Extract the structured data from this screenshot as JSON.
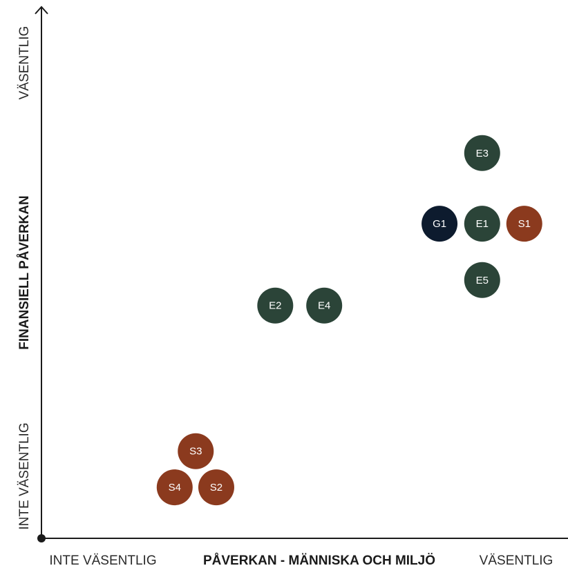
{
  "chart_data": {
    "type": "scatter",
    "title": "",
    "xlabel": "PÅVERKAN - MÄNNISKA OCH MILJÖ",
    "ylabel": "FINANSIELL PÅVERKAN",
    "x_low_label": "INTE VÄSENTLIG",
    "x_high_label": "VÄSENTLIG",
    "y_low_label": "INTE VÄSENTLIG",
    "y_high_label": "VÄSENTLIG",
    "xlim": [
      0,
      100
    ],
    "ylim": [
      0,
      100
    ],
    "grid": false,
    "legend": "none",
    "colors": {
      "E": "#2b4438",
      "S": "#8b3a1e",
      "G": "#0d1b2e"
    },
    "points": [
      {
        "label": "E3",
        "group": "E",
        "x": 83.7,
        "y": 72.5
      },
      {
        "label": "G1",
        "group": "G",
        "x": 75.6,
        "y": 59.2
      },
      {
        "label": "E1",
        "group": "E",
        "x": 83.7,
        "y": 59.2
      },
      {
        "label": "S1",
        "group": "S",
        "x": 91.7,
        "y": 59.2
      },
      {
        "label": "E5",
        "group": "E",
        "x": 83.7,
        "y": 48.6
      },
      {
        "label": "E2",
        "group": "E",
        "x": 44.4,
        "y": 43.8
      },
      {
        "label": "E4",
        "group": "E",
        "x": 53.7,
        "y": 43.8
      },
      {
        "label": "S3",
        "group": "S",
        "x": 29.3,
        "y": 16.4
      },
      {
        "label": "S4",
        "group": "S",
        "x": 25.3,
        "y": 9.6
      },
      {
        "label": "S2",
        "group": "S",
        "x": 33.2,
        "y": 9.6
      }
    ]
  }
}
